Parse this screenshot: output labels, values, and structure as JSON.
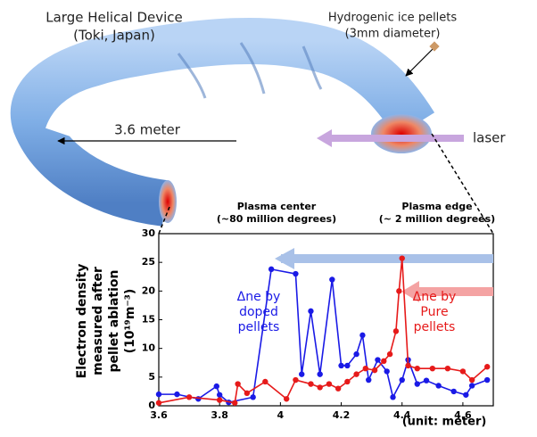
{
  "chart_data": {
    "type": "line",
    "annotations": {
      "device_name": "Large Helical Device",
      "device_location": "(Toki, Japan)",
      "pellets": "Hydrogenic ice pellets",
      "pellet_size": "(3mm diameter)",
      "length": "3.6 meter",
      "laser": "laser",
      "center": "Plasma center",
      "center_temp": "(~80 million degrees)",
      "edge": "Plasma edge",
      "edge_temp": "(~ 2 million degrees)"
    },
    "y_label": [
      "Electron density",
      "measured after",
      "pellet ablation",
      "(10¹⁹m⁻³)"
    ],
    "x_label": "(unit: meter)",
    "xlim": [
      3.6,
      4.7
    ],
    "xticks": [
      3.6,
      3.8,
      4,
      4.2,
      4.4,
      4.6
    ],
    "ylim": [
      0,
      30
    ],
    "yticks": [
      0,
      5,
      10,
      15,
      20,
      25,
      30
    ],
    "series": [
      {
        "name": [
          "Δne by",
          "doped",
          "pellets"
        ],
        "color": "#1a1ae6",
        "x": [
          3.6,
          3.66,
          3.73,
          3.79,
          3.8,
          3.83,
          3.91,
          3.97,
          4.05,
          4.07,
          4.1,
          4.13,
          4.17,
          4.2,
          4.22,
          4.25,
          4.27,
          4.29,
          4.32,
          4.35,
          4.37,
          4.4,
          4.42,
          4.45,
          4.48,
          4.52,
          4.57,
          4.61,
          4.63,
          4.68
        ],
        "values": [
          2,
          2,
          1.2,
          3.4,
          1.9,
          0.6,
          1.5,
          23.8,
          23,
          5.5,
          16.5,
          5.5,
          22,
          7,
          7,
          9,
          12.3,
          4.5,
          8,
          6,
          1.5,
          4.5,
          8,
          3.8,
          4.4,
          3.5,
          2.5,
          1.9,
          3.5,
          4.5
        ]
      },
      {
        "name": [
          "Δne by",
          "Pure",
          "pellets"
        ],
        "color": "#e61a1a",
        "x": [
          3.6,
          3.7,
          3.8,
          3.85,
          3.86,
          3.89,
          3.95,
          4.02,
          4.05,
          4.1,
          4.13,
          4.16,
          4.19,
          4.22,
          4.25,
          4.28,
          4.31,
          4.34,
          4.36,
          4.38,
          4.39,
          4.4,
          4.42,
          4.45,
          4.5,
          4.55,
          4.6,
          4.63,
          4.68
        ],
        "values": [
          0.5,
          1.5,
          1,
          0.5,
          3.8,
          2.2,
          4.2,
          1.2,
          4.5,
          3.8,
          3.2,
          3.8,
          3,
          4.2,
          5.5,
          6.5,
          6.2,
          7.8,
          9,
          13,
          20,
          25.7,
          7,
          6.5,
          6.5,
          6.5,
          6,
          4.5,
          6.8
        ]
      }
    ]
  }
}
